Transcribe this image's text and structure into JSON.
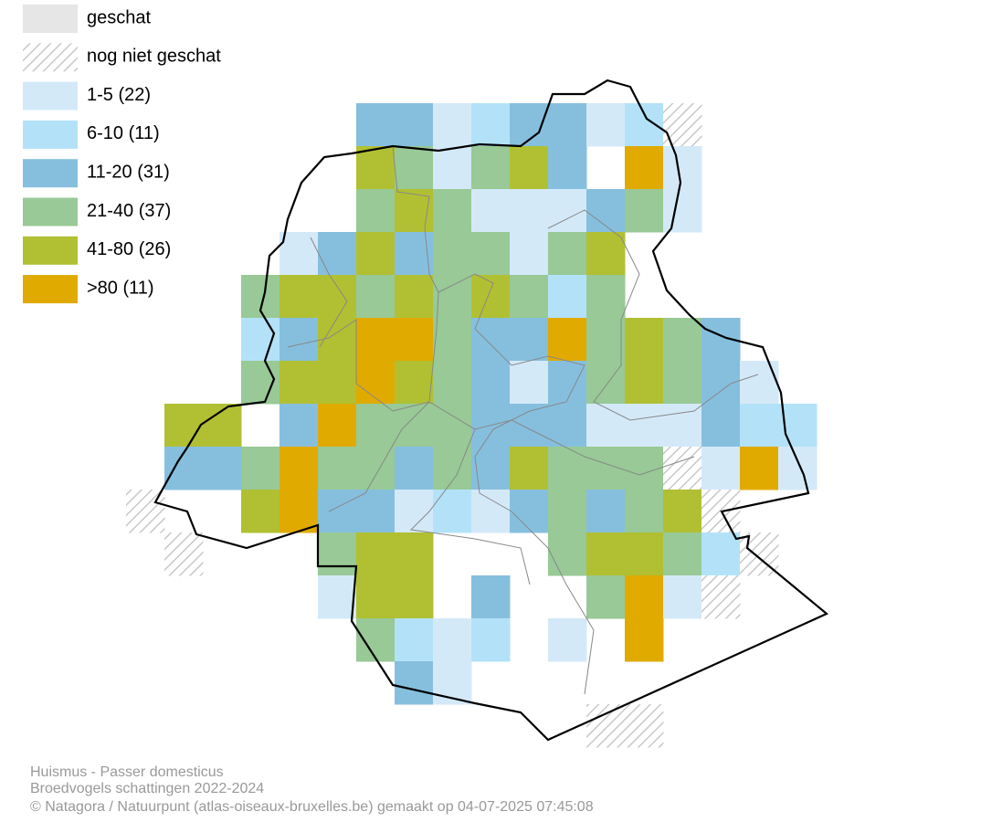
{
  "legend": {
    "items": [
      "geschat",
      "nog niet geschat",
      "1-5 (22)",
      "6-10 (11)",
      "11-20 (31)",
      "21-40 (37)",
      "41-80 (26)",
      ">80 (11)"
    ]
  },
  "footer": {
    "species": "Huismus - Passer domesticus",
    "subtitle": "Broedvogels schattingen 2022-2024",
    "credit": "© Natagora / Natuurpunt (atlas-oiseaux-bruxelles.be) gemaakt op 04-07-2025 07:45:08"
  }
}
